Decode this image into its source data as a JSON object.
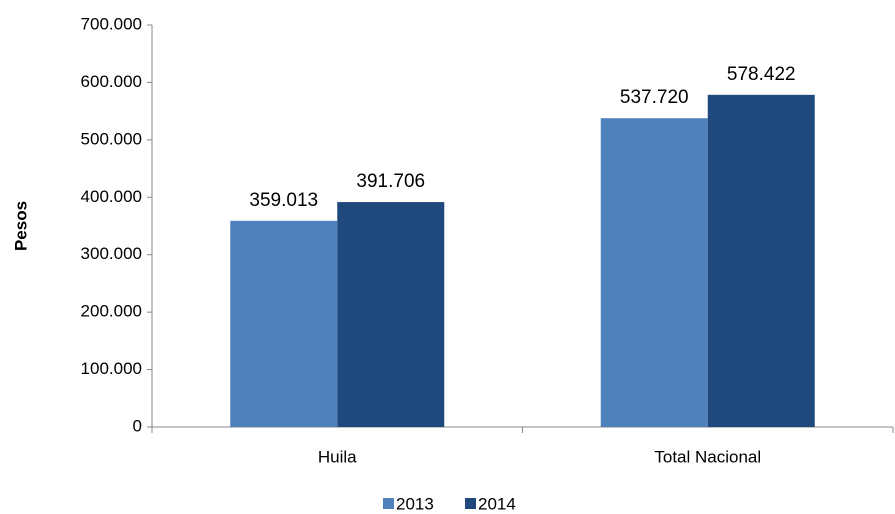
{
  "chart_data": {
    "type": "bar",
    "y_label": "Pesos",
    "categories": [
      "Huila",
      "Total Nacional"
    ],
    "series": [
      {
        "name": "2013",
        "color": "#4f81bd",
        "values": [
          359013,
          537720
        ],
        "value_labels": [
          "359.013",
          "537.720"
        ]
      },
      {
        "name": "2014",
        "color": "#1f497d",
        "values": [
          391706,
          578422
        ],
        "value_labels": [
          "391.706",
          "578.422"
        ]
      }
    ],
    "ylim": [
      0,
      700000
    ],
    "yticks": [
      0,
      {
        "value": 100000,
        "label": "100.000"
      },
      {
        "value": 200000,
        "label": "200.000"
      },
      {
        "value": 300000,
        "label": "300.000"
      },
      {
        "value": 400000,
        "label": "400.000"
      },
      {
        "value": 500000,
        "label": "500.000"
      },
      {
        "value": 600000,
        "label": "600.000"
      },
      {
        "value": 700000,
        "label": "700.000"
      }
    ],
    "legend": "bottom"
  }
}
